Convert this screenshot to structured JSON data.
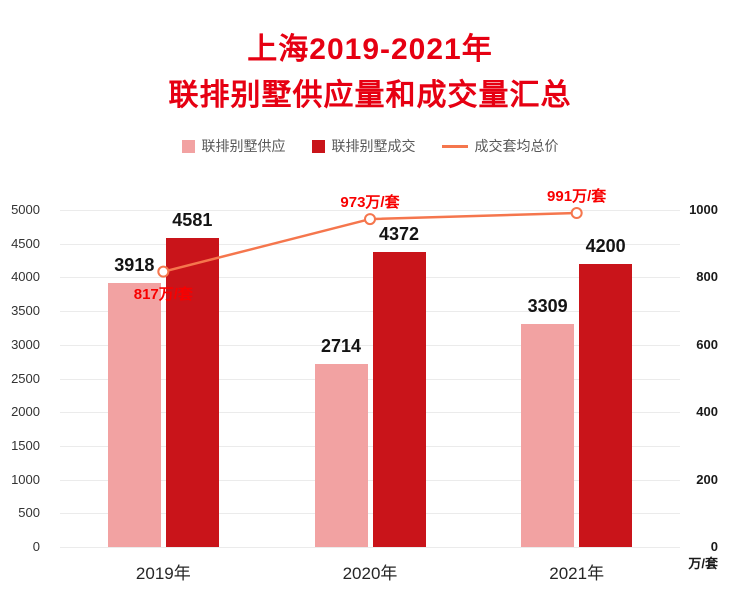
{
  "title": {
    "line1": "上海2019-2021年",
    "line2": "联排别墅供应量和成交量汇总"
  },
  "legend": [
    {
      "label": "联排别墅供应",
      "type": "square",
      "color": "#f2a2a2"
    },
    {
      "label": "联排别墅成交",
      "type": "square",
      "color": "#c9141a"
    },
    {
      "label": "成交套均总价",
      "type": "line",
      "color": "#f5764d"
    }
  ],
  "chart_data": {
    "type": "bar",
    "title": "上海2019-2021年联排别墅供应量和成交量汇总",
    "categories": [
      "2019年",
      "2020年",
      "2021年"
    ],
    "series": [
      {
        "name": "联排别墅供应",
        "type": "bar",
        "color": "#f2a2a2",
        "values": [
          3918,
          2714,
          3309
        ]
      },
      {
        "name": "联排别墅成交",
        "type": "bar",
        "color": "#c9141a",
        "values": [
          4581,
          4372,
          4200
        ]
      },
      {
        "name": "成交套均总价",
        "type": "line",
        "color": "#f5764d",
        "values": [
          817,
          973,
          991
        ],
        "point_labels": [
          "817万/套",
          "973万/套",
          "991万/套"
        ],
        "label_positions": [
          "below",
          "above",
          "above"
        ]
      }
    ],
    "left_axis": {
      "min": 0,
      "max": 5000,
      "step": 500
    },
    "right_axis": {
      "min": 0,
      "max": 1000,
      "step": 200,
      "unit": "万/套"
    },
    "grid": true,
    "legend_position": "top",
    "point_label_color": "#f80000"
  }
}
